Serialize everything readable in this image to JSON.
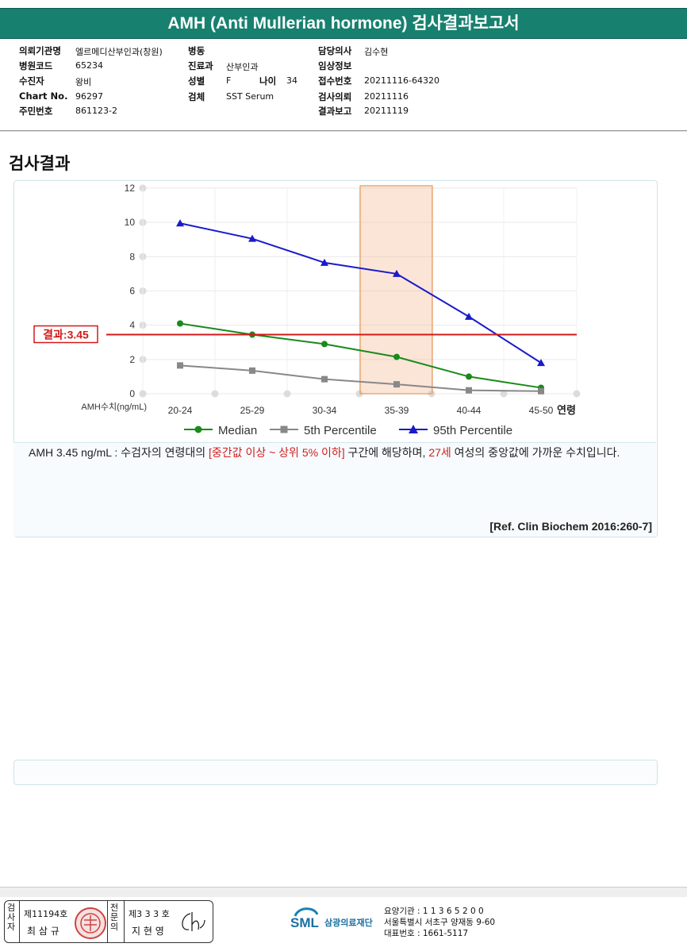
{
  "header": {
    "title": "AMH (Anti Mullerian hormone) 검사결과보고서"
  },
  "info": {
    "institution_label": "의뢰기관명",
    "institution": "엘르메디산부인과(창원)",
    "hospital_code_label": "병원코드",
    "hospital_code": "65234",
    "patient_label": "수진자",
    "patient": "왕비",
    "chart_label": "Chart No.",
    "chart": "96297",
    "resident_label": "주민번호",
    "resident": "861123-2",
    "ward_label": "병동",
    "ward": "",
    "department_label": "진료과",
    "department": "산부인과",
    "sex_label": "성별",
    "sex": "F",
    "age_label": "나이",
    "age": "34",
    "specimen_label": "검체",
    "specimen": "SST Serum",
    "doctor_label": "담당의사",
    "doctor": "김수현",
    "clinical_label": "임상정보",
    "clinical": "",
    "receipt_label": "접수번호",
    "receipt": "20211116-64320",
    "request_label": "검사의뢰",
    "request": "20211116",
    "report_label": "결과보고",
    "report": "20211119"
  },
  "section": {
    "title": "검사결과"
  },
  "chart_data": {
    "type": "line",
    "categories": [
      "20-24",
      "25-29",
      "30-34",
      "35-39",
      "40-44",
      "45-50"
    ],
    "xlabel": "연령",
    "ylabel": "AMH수치(ng/mL)",
    "ylim": [
      0,
      12
    ],
    "yticks": [
      "0",
      "2",
      "4",
      "6",
      "8",
      "10",
      "12"
    ],
    "grid": true,
    "legend_position": "bottom",
    "highlight_category": "35-39",
    "result_line": {
      "label": "결과:3.45",
      "value": 3.45,
      "color": "#d31a1a"
    },
    "series": [
      {
        "name": "Median",
        "color": "#1a8a1a",
        "marker": "circle",
        "values": [
          4.1,
          3.45,
          2.9,
          2.15,
          1.0,
          0.35
        ]
      },
      {
        "name": "5th Percentile",
        "color": "#888888",
        "marker": "square",
        "values": [
          1.65,
          1.35,
          0.85,
          0.55,
          0.2,
          0.15
        ]
      },
      {
        "name": "95th Percentile",
        "color": "#1a1acc",
        "marker": "triangle",
        "values": [
          9.95,
          9.05,
          7.65,
          7.0,
          4.5,
          1.8
        ]
      }
    ]
  },
  "comment": {
    "p1": "AMH  3.45 ng/mL : 수검자의 연령대의 ",
    "p2": "[중간값 이상 ~ 상위 5% 이하]",
    "p3": "  구간에 해당하며, ",
    "p4": "27세",
    "p5": " 여성의 중앙값에 가까운 수치입니다.",
    "reference": "[Ref. Clin Biochem 2016:260-7]"
  },
  "footer": {
    "examiner_label": "검사자",
    "examiner_no": "제11194호",
    "examiner_name": "최 삼 규",
    "confirmer_label": "전문의",
    "confirmer_no": "제3 3 3 호",
    "confirmer_name": "지 현 영",
    "logo_text": "SML",
    "org_name": "삼광의료재단",
    "inst_code": "요양기관 : 1 1 3 6 5 2 0 0",
    "address": "서울특별시 서초구 양재동 9-60",
    "phone": "대표번호 : 1661-5117",
    "seal_text": "최삼규",
    "signature_text": "ch"
  }
}
